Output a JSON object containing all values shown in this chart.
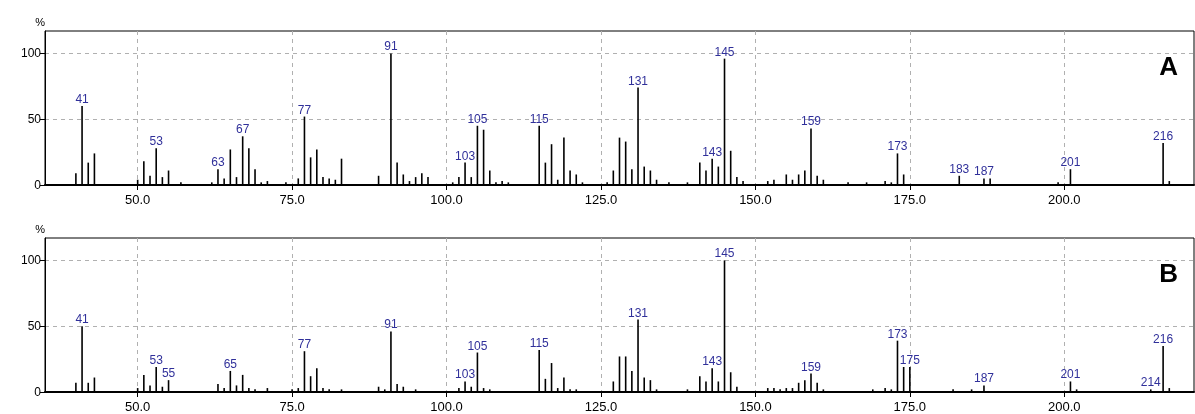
{
  "chart_data": [
    {
      "type": "bar",
      "title": "A",
      "ylabel": "%",
      "color": "#000000",
      "grid": true,
      "x": [
        40,
        41,
        42,
        43,
        50,
        51,
        52,
        53,
        54,
        55,
        57,
        62,
        63,
        64,
        65,
        66,
        67,
        68,
        69,
        70,
        71,
        74,
        76,
        77,
        78,
        79,
        80,
        81,
        82,
        83,
        89,
        91,
        92,
        93,
        94,
        95,
        96,
        97,
        101,
        102,
        103,
        104,
        105,
        106,
        107,
        108,
        109,
        110,
        115,
        116,
        117,
        118,
        119,
        120,
        121,
        122,
        126,
        127,
        128,
        129,
        130,
        131,
        132,
        133,
        134,
        136,
        139,
        141,
        142,
        143,
        144,
        145,
        146,
        147,
        148,
        152,
        153,
        155,
        156,
        157,
        158,
        159,
        160,
        161,
        165,
        168,
        171,
        172,
        173,
        174,
        183,
        187,
        188,
        199,
        201,
        216,
        217
      ],
      "values": [
        9,
        60,
        17,
        24,
        4,
        18,
        7,
        28,
        6,
        11,
        2,
        2,
        12,
        5,
        27,
        6,
        37,
        28,
        12,
        2,
        3,
        2,
        5,
        52,
        21,
        27,
        6,
        5,
        4,
        20,
        7,
        100,
        17,
        8,
        3,
        6,
        9,
        6,
        2,
        6,
        17,
        6,
        45,
        42,
        11,
        2,
        3,
        2,
        45,
        17,
        31,
        4,
        36,
        11,
        8,
        2,
        2,
        11,
        36,
        33,
        12,
        74,
        14,
        11,
        4,
        2,
        2,
        17,
        11,
        20,
        14,
        96,
        26,
        6,
        3,
        3,
        4,
        8,
        4,
        8,
        11,
        43,
        7,
        4,
        2,
        2,
        3,
        2,
        24,
        8,
        7,
        5,
        5,
        2,
        12,
        32,
        3
      ],
      "annotations": [
        {
          "text": "41",
          "x": 41,
          "y": 60
        },
        {
          "text": "53",
          "x": 53,
          "y": 28
        },
        {
          "text": "63",
          "x": 63,
          "y": 12
        },
        {
          "text": "67",
          "x": 67,
          "y": 37
        },
        {
          "text": "77",
          "x": 77,
          "y": 52
        },
        {
          "text": "91",
          "x": 91,
          "y": 100
        },
        {
          "text": "103",
          "x": 103,
          "y": 17
        },
        {
          "text": "105",
          "x": 105,
          "y": 45
        },
        {
          "text": "115",
          "x": 115,
          "y": 45
        },
        {
          "text": "131",
          "x": 131,
          "y": 74
        },
        {
          "text": "143",
          "x": 143,
          "y": 20
        },
        {
          "text": "145",
          "x": 145,
          "y": 96
        },
        {
          "text": "159",
          "x": 159,
          "y": 43
        },
        {
          "text": "173",
          "x": 173,
          "y": 24
        },
        {
          "text": "183",
          "x": 183,
          "y": 7
        },
        {
          "text": "187",
          "x": 187,
          "y": 5
        },
        {
          "text": "201",
          "x": 201,
          "y": 12
        },
        {
          "text": "216",
          "x": 216,
          "y": 32
        }
      ],
      "xlim": [
        35,
        221
      ],
      "xticks": [
        {
          "value": 50,
          "label": "50.0"
        },
        {
          "value": 75,
          "label": "75.0"
        },
        {
          "value": 100,
          "label": "100.0"
        },
        {
          "value": 125,
          "label": "125.0"
        },
        {
          "value": 150,
          "label": "150.0"
        },
        {
          "value": 175,
          "label": "175.0"
        },
        {
          "value": 200,
          "label": "200.0"
        }
      ],
      "ylim": [
        0,
        117
      ],
      "yticks": [
        0,
        50,
        100
      ]
    },
    {
      "type": "bar",
      "title": "B",
      "ylabel": "%",
      "color": "#000000",
      "grid": true,
      "x": [
        40,
        41,
        42,
        43,
        50,
        51,
        52,
        53,
        54,
        55,
        63,
        64,
        65,
        66,
        67,
        68,
        69,
        71,
        75,
        76,
        77,
        78,
        79,
        80,
        81,
        83,
        89,
        90,
        91,
        92,
        93,
        95,
        102,
        103,
        104,
        105,
        106,
        107,
        115,
        116,
        117,
        118,
        119,
        120,
        121,
        127,
        128,
        129,
        130,
        131,
        132,
        133,
        134,
        139,
        141,
        142,
        143,
        144,
        145,
        146,
        147,
        152,
        153,
        154,
        155,
        156,
        157,
        158,
        159,
        160,
        161,
        169,
        171,
        172,
        173,
        174,
        175,
        182,
        185,
        187,
        201,
        202,
        214,
        216,
        217
      ],
      "values": [
        7,
        50,
        7,
        11,
        3,
        13,
        5,
        19,
        4,
        9,
        6,
        3,
        16,
        5,
        13,
        3,
        2,
        3,
        2,
        3,
        31,
        12,
        18,
        3,
        2,
        2,
        4,
        2,
        46,
        6,
        4,
        2,
        3,
        8,
        4,
        30,
        3,
        2,
        32,
        10,
        22,
        3,
        11,
        2,
        2,
        8,
        27,
        27,
        16,
        55,
        11,
        9,
        2,
        2,
        12,
        8,
        18,
        8,
        100,
        15,
        4,
        3,
        3,
        2,
        3,
        3,
        7,
        9,
        14,
        7,
        2,
        2,
        3,
        2,
        39,
        19,
        19,
        2,
        2,
        5,
        8,
        2,
        2,
        35,
        3
      ],
      "annotations": [
        {
          "text": "41",
          "x": 41,
          "y": 50
        },
        {
          "text": "53",
          "x": 53,
          "y": 19
        },
        {
          "text": "55",
          "x": 55,
          "y": 9
        },
        {
          "text": "65",
          "x": 65,
          "y": 16
        },
        {
          "text": "77",
          "x": 77,
          "y": 31
        },
        {
          "text": "91",
          "x": 91,
          "y": 46
        },
        {
          "text": "103",
          "x": 103,
          "y": 8
        },
        {
          "text": "105",
          "x": 105,
          "y": 30
        },
        {
          "text": "115",
          "x": 115,
          "y": 32
        },
        {
          "text": "131",
          "x": 131,
          "y": 55
        },
        {
          "text": "143",
          "x": 143,
          "y": 18
        },
        {
          "text": "145",
          "x": 145,
          "y": 100
        },
        {
          "text": "159",
          "x": 159,
          "y": 14
        },
        {
          "text": "173",
          "x": 173,
          "y": 39
        },
        {
          "text": "175",
          "x": 175,
          "y": 19
        },
        {
          "text": "187",
          "x": 187,
          "y": 5
        },
        {
          "text": "201",
          "x": 201,
          "y": 8
        },
        {
          "text": "214",
          "x": 214,
          "y": 2
        },
        {
          "text": "216",
          "x": 216,
          "y": 35
        }
      ],
      "xlim": [
        35,
        221
      ],
      "xticks": [
        {
          "value": 50,
          "label": "50.0"
        },
        {
          "value": 75,
          "label": "75.0"
        },
        {
          "value": 100,
          "label": "100.0"
        },
        {
          "value": 125,
          "label": "125.0"
        },
        {
          "value": 150,
          "label": "150.0"
        },
        {
          "value": 175,
          "label": "175.0"
        },
        {
          "value": 200,
          "label": "200.0"
        }
      ],
      "ylim": [
        0,
        117
      ],
      "yticks": [
        0,
        50,
        100
      ]
    }
  ]
}
